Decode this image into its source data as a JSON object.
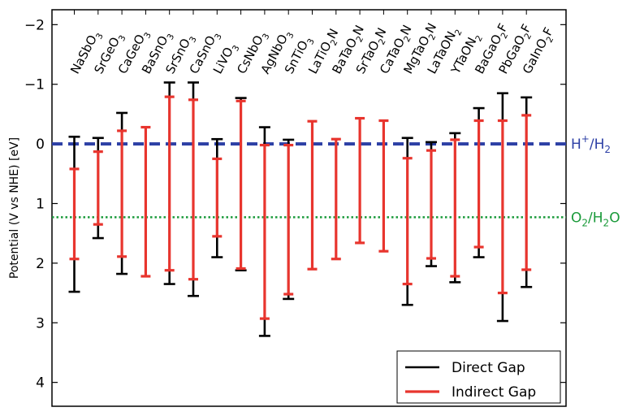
{
  "chart_data": {
    "type": "errorbar",
    "ylabel": "Potential (V vs NHE) [eV]",
    "ylim": [
      4.4,
      -2.25
    ],
    "y_inverted": true,
    "yticks": [
      -2,
      -1,
      0,
      1,
      2,
      3,
      4
    ],
    "ytick_labels": [
      "−2",
      "−1",
      "0",
      "1",
      "2",
      "3",
      "4"
    ],
    "categories": [
      {
        "base": "NaSbO",
        "sub": "3"
      },
      {
        "base": "SrGeO",
        "sub": "3"
      },
      {
        "base": "CaGeO",
        "sub": "3"
      },
      {
        "base": "BaSnO",
        "sub": "3"
      },
      {
        "base": "SrSnO",
        "sub": "3"
      },
      {
        "base": "CaSnO",
        "sub": "3"
      },
      {
        "base": "LiVO",
        "sub": "3"
      },
      {
        "base": "CsNbO",
        "sub": "3"
      },
      {
        "base": "AgNbO",
        "sub": "3"
      },
      {
        "base": "SnTiO",
        "sub": "3"
      },
      {
        "base": "LaTiO",
        "sub": "2",
        "tail": "N"
      },
      {
        "base": "BaTaO",
        "sub": "2",
        "tail": "N"
      },
      {
        "base": "SrTaO",
        "sub": "2",
        "tail": "N"
      },
      {
        "base": "CaTaO",
        "sub": "2",
        "tail": "N"
      },
      {
        "base": "MgTaO",
        "sub": "2",
        "tail": "N"
      },
      {
        "base": "LaTaON",
        "sub": "2"
      },
      {
        "base": "YTaON",
        "sub": "2"
      },
      {
        "base": "BaGaO",
        "sub": "2",
        "tail": "F"
      },
      {
        "base": "PbGaO",
        "sub": "2",
        "tail": "F"
      },
      {
        "base": "GaInO",
        "sub": "2",
        "tail": "F"
      }
    ],
    "series": [
      {
        "name": "Direct Gap",
        "color": "#000000",
        "ranges": [
          [
            -0.12,
            2.48
          ],
          [
            -0.1,
            1.58
          ],
          [
            -0.52,
            2.18
          ],
          null,
          [
            -1.03,
            2.35
          ],
          [
            -1.03,
            2.55
          ],
          [
            -0.08,
            1.9
          ],
          [
            -0.77,
            2.12
          ],
          [
            -0.28,
            3.22
          ],
          [
            -0.07,
            2.6
          ],
          null,
          null,
          null,
          null,
          [
            -0.1,
            2.7
          ],
          [
            -0.03,
            2.05
          ],
          [
            -0.18,
            2.32
          ],
          [
            -0.6,
            1.9
          ],
          [
            -0.85,
            2.97
          ],
          [
            -0.78,
            2.4
          ]
        ]
      },
      {
        "name": "Indirect Gap",
        "color": "#e8352e",
        "ranges": [
          [
            0.42,
            1.93
          ],
          [
            0.13,
            1.35
          ],
          [
            -0.22,
            1.89
          ],
          [
            -0.28,
            2.22
          ],
          [
            -0.79,
            2.12
          ],
          [
            -0.74,
            2.27
          ],
          [
            0.25,
            1.55
          ],
          [
            -0.72,
            2.09
          ],
          [
            0.02,
            2.93
          ],
          [
            0.02,
            2.52
          ],
          [
            -0.38,
            2.1
          ],
          [
            -0.08,
            1.93
          ],
          [
            -0.43,
            1.66
          ],
          [
            -0.39,
            1.8
          ],
          [
            0.24,
            2.35
          ],
          [
            0.11,
            1.92
          ],
          [
            -0.07,
            2.22
          ],
          [
            -0.39,
            1.73
          ],
          [
            -0.39,
            2.5
          ],
          [
            -0.48,
            2.11
          ]
        ]
      }
    ],
    "reference_lines": [
      {
        "value": 0.0,
        "label_base": "H",
        "label_sup": "+",
        "label_mid": "/H",
        "label_sub": "2",
        "color": "#2c3fa5",
        "style": "dashed"
      },
      {
        "value": 1.23,
        "label_base": "O",
        "label_sub": "2",
        "label_mid": "/H",
        "label_sub2": "2",
        "label_tail": "O",
        "color": "#1a9a3a",
        "style": "dotted"
      }
    ],
    "legend": {
      "position": "bottom-right",
      "entries": [
        {
          "label": "Direct Gap",
          "color": "#000000"
        },
        {
          "label": "Indirect Gap",
          "color": "#e8352e"
        }
      ]
    },
    "grid": false
  }
}
